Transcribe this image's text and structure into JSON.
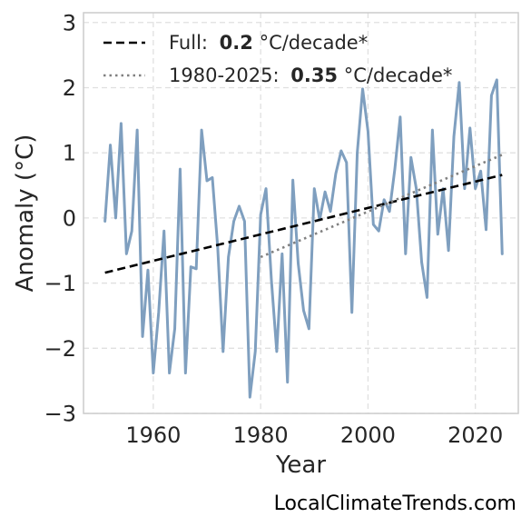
{
  "chart_data": {
    "type": "line",
    "xlabel": "Year",
    "ylabel": "Anomaly (°C)",
    "xlim": [
      1947,
      2028
    ],
    "ylim": [
      -3,
      3.15
    ],
    "x_ticks": [
      1960,
      1980,
      2000,
      2020
    ],
    "y_ticks": [
      -3,
      -2,
      -1,
      0,
      1,
      2,
      3
    ],
    "y_tick_labels": [
      "−3",
      "−2",
      "−1",
      "0",
      "1",
      "2",
      "3"
    ],
    "grid": true,
    "legend_position": "top-left",
    "series": [
      {
        "color": "#7f9fbf",
        "x": [
          1951,
          1952,
          1953,
          1954,
          1955,
          1956,
          1957,
          1958,
          1959,
          1960,
          1961,
          1962,
          1963,
          1964,
          1965,
          1966,
          1967,
          1968,
          1969,
          1970,
          1971,
          1972,
          1973,
          1974,
          1975,
          1976,
          1977,
          1978,
          1979,
          1980,
          1981,
          1982,
          1983,
          1984,
          1985,
          1986,
          1987,
          1988,
          1989,
          1990,
          1991,
          1992,
          1993,
          1994,
          1995,
          1996,
          1997,
          1998,
          1999,
          2000,
          2001,
          2002,
          2003,
          2004,
          2005,
          2006,
          2007,
          2008,
          2009,
          2010,
          2011,
          2012,
          2013,
          2014,
          2015,
          2016,
          2017,
          2018,
          2019,
          2020,
          2021,
          2022,
          2023,
          2024,
          2025
        ],
        "y": [
          -0.05,
          1.12,
          0.0,
          1.45,
          -0.55,
          -0.2,
          1.35,
          -1.82,
          -0.8,
          -2.38,
          -1.45,
          -0.2,
          -2.38,
          -1.7,
          0.75,
          -2.38,
          -0.75,
          -0.78,
          1.35,
          0.57,
          0.62,
          -0.45,
          -2.05,
          -0.6,
          -0.05,
          0.18,
          -0.05,
          -2.75,
          -2.05,
          0.05,
          0.45,
          -0.95,
          -2.05,
          -0.55,
          -2.52,
          0.58,
          -0.7,
          -1.42,
          -1.7,
          0.45,
          -0.03,
          0.4,
          0.1,
          0.68,
          1.03,
          0.85,
          -1.45,
          1.0,
          1.98,
          1.33,
          -0.1,
          -0.2,
          0.28,
          0.1,
          0.75,
          1.55,
          -0.55,
          0.93,
          0.45,
          -0.68,
          -1.22,
          1.35,
          -0.25,
          0.45,
          -0.5,
          1.25,
          2.08,
          0.45,
          1.38,
          0.45,
          0.72,
          -0.18,
          1.88,
          2.12,
          -0.55
        ]
      }
    ],
    "trendlines": [
      {
        "label": "Full:",
        "rate": "0.2",
        "unit": "°C/decade*",
        "style": "dashed",
        "color": "#000000",
        "x": [
          1951,
          2025
        ],
        "y": [
          -0.84,
          0.66
        ]
      },
      {
        "label": "1980-2025:",
        "rate": "0.35",
        "unit": "°C/decade*",
        "style": "dotted",
        "color": "#808080",
        "x": [
          1980,
          2025
        ],
        "y": [
          -0.6,
          0.97
        ]
      }
    ]
  },
  "credit": "LocalClimateTrends.com"
}
